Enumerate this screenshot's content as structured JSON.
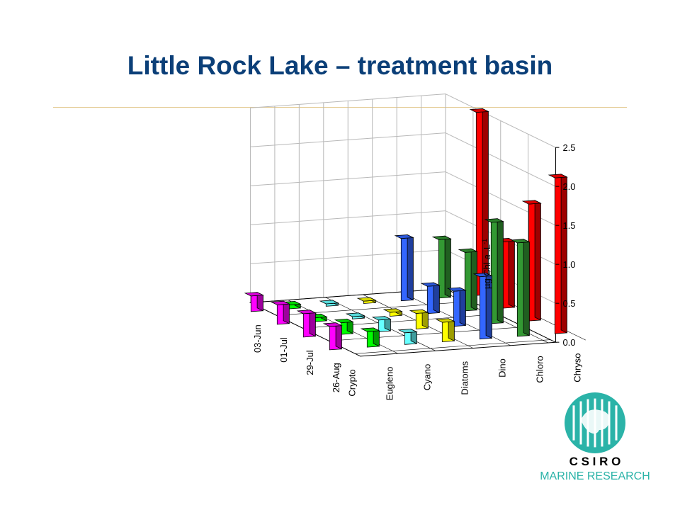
{
  "slide": {
    "title": "Little Rock Lake – treatment basin"
  },
  "logo": {
    "org": "C S I R O",
    "division": "MARINE RESEARCH"
  },
  "chart_data": {
    "type": "bar3d",
    "title": "",
    "zlabel": "µg Chl a .L-1",
    "zlim": [
      0,
      2.5
    ],
    "zticks": [
      "0.0",
      "0.5",
      "1.0",
      "1.5",
      "2.0",
      "2.5"
    ],
    "categories": [
      "Crypto",
      "Eugleno",
      "Cyano",
      "Diatoms",
      "Dino",
      "Chloro",
      "Chryso"
    ],
    "dates": [
      "26-Aug",
      "29-Jul",
      "01-Jul",
      "03-Jun"
    ],
    "colors": [
      "#ff00ff",
      "#00ff00",
      "#66ffff",
      "#ffff00",
      "#3366ff",
      "#339933",
      "#ff0000"
    ],
    "values": [
      [
        0.3,
        0.3,
        0.25,
        0.2
      ],
      [
        0.2,
        0.15,
        0.05,
        0.05
      ],
      [
        0.15,
        0.15,
        0.03,
        0.03
      ],
      [
        0.25,
        0.2,
        0.05,
        0.03
      ],
      [
        0.8,
        0.45,
        0.35,
        0.8
      ],
      [
        1.2,
        1.3,
        0.75,
        0.75
      ],
      [
        2.0,
        1.5,
        0.85,
        2.35
      ]
    ]
  }
}
